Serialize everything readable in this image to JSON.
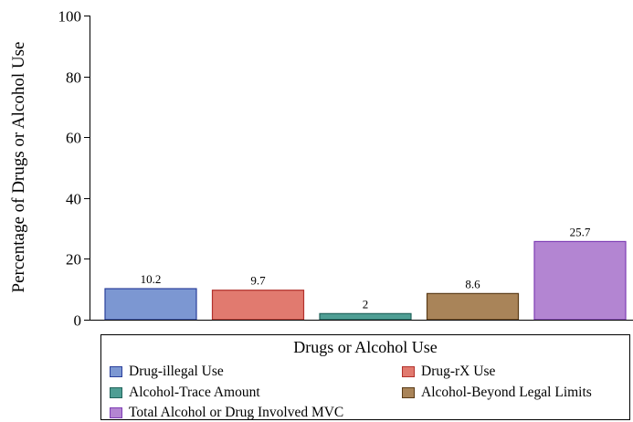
{
  "chart_data": {
    "type": "bar",
    "title": "",
    "xlabel": "",
    "ylabel": "Percentage of Drugs or Alcohol Use",
    "ylim": [
      0,
      100
    ],
    "yticks": [
      0,
      20,
      40,
      60,
      80,
      100
    ],
    "grid": false,
    "categories": [
      "Drug-illegal Use",
      "Drug-rX Use",
      "Alcohol-Trace Amount",
      "Alcohol-Beyond Legal Limits",
      "Total Alcohol or Drug Involved MVC"
    ],
    "values": [
      10.2,
      9.7,
      2,
      8.6,
      25.7
    ],
    "value_labels": [
      "10.2",
      "9.7",
      "2",
      "8.6",
      "25.7"
    ],
    "colors": [
      "#7c97d2",
      "#e17a6f",
      "#4f9e94",
      "#a98459",
      "#b385d2"
    ],
    "edge_colors": [
      "#2a3f9b",
      "#b2312c",
      "#22645c",
      "#5a3b17",
      "#7e3db4"
    ],
    "legend": {
      "title": "Drugs or Alcohol Use",
      "placement": "bottom",
      "entries": [
        "Drug-illegal Use",
        "Drug-rX Use",
        "Alcohol-Trace Amount",
        "Alcohol-Beyond Legal Limits",
        "Total Alcohol or Drug Involved MVC"
      ]
    }
  }
}
